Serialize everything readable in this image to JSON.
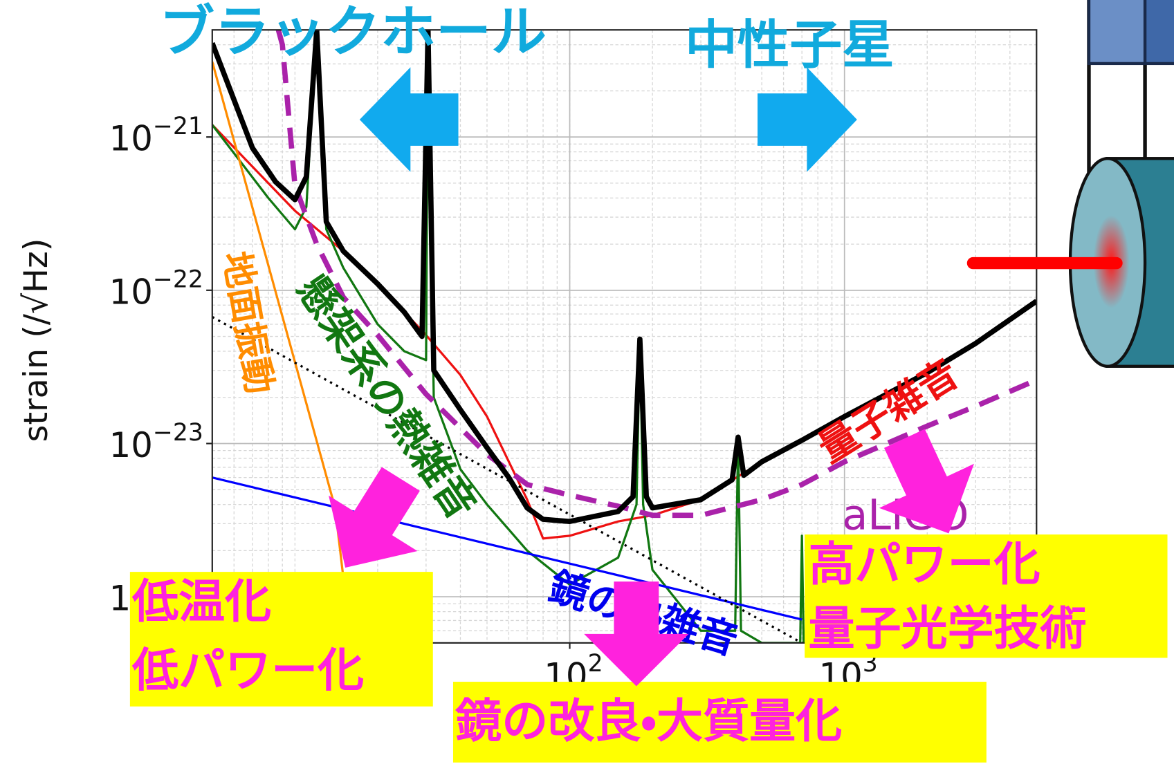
{
  "chart_data": {
    "type": "line",
    "xscale": "log",
    "yscale": "log",
    "xlim": [
      5,
      5000
    ],
    "ylim": [
      5e-25,
      5e-21
    ],
    "xticks": [
      {
        "value": 100,
        "label": "10",
        "exponent": "2"
      },
      {
        "value": 1000,
        "label": "10",
        "exponent": "3"
      }
    ],
    "yticks": [
      {
        "value": 1e-21,
        "label": "10",
        "exponent": "−21"
      },
      {
        "value": 1e-22,
        "label": "10",
        "exponent": "−22"
      },
      {
        "value": 1e-23,
        "label": "10",
        "exponent": "−23"
      },
      {
        "value": 1e-24,
        "label": "10",
        "exponent": "−24"
      }
    ],
    "ylabel": "strain (/√Hz)",
    "grid": true,
    "minor_grid": true,
    "annotations": [
      "ブラックホール",
      "中性子星"
    ],
    "callouts": [
      {
        "lines": [
          "低温化",
          "低パワー化"
        ]
      },
      {
        "lines": [
          "鏡の改良・大質量化"
        ]
      },
      {
        "lines": [
          "高パワー化",
          "量子光学技術"
        ]
      }
    ],
    "series": [
      {
        "name": "量子雑音",
        "color": "#ee1111",
        "width": 3,
        "x": [
          5,
          10,
          15,
          20,
          30,
          40,
          50,
          70,
          80,
          100,
          150,
          200,
          300,
          500,
          700,
          1000,
          2000,
          3000,
          5000
        ],
        "values": [
          1.2e-21,
          3.3e-22,
          1.8e-22,
          1.1e-22,
          5.1e-23,
          2.8e-23,
          1.5e-23,
          4.3e-24,
          2.4e-24,
          2.5e-24,
          3.1e-24,
          3.4e-24,
          4.3e-24,
          7.6e-24,
          1.05e-23,
          1.5e-23,
          2.9e-23,
          4.5e-23,
          8.5e-23
        ]
      },
      {
        "name": "懸架系の熱雑音",
        "color": "#117711",
        "width": 3,
        "x": [
          5,
          8,
          10,
          11,
          12,
          13,
          15,
          20,
          25,
          30,
          30.5,
          32,
          40,
          50,
          70,
          100,
          150,
          175,
          180,
          185,
          200,
          300,
          400,
          410,
          420,
          500,
          690,
          700,
          710
        ],
        "values": [
          1.2e-21,
          4e-22,
          2.5e-22,
          3.5e-22,
          5e-21,
          2.5e-22,
          1.4e-22,
          6e-23,
          4e-23,
          3.5e-23,
          5e-21,
          2e-23,
          6.8e-24,
          4e-24,
          2e-24,
          1.2e-24,
          1.8e-24,
          4e-24,
          4.8e-23,
          4e-24,
          1.5e-24,
          6e-25,
          6e-25,
          1.1e-23,
          6e-25,
          5e-25,
          5e-25,
          2.5e-24,
          5e-25
        ]
      },
      {
        "name": "地面振動",
        "color": "#ff8c00",
        "width": 3,
        "x": [
          5,
          14,
          16
        ],
        "values": [
          3.1e-21,
          3.8e-24,
          5e-25
        ]
      },
      {
        "name": "鏡の熱雑音",
        "color": "#0000ff",
        "width": 3,
        "x": [
          5,
          700
        ],
        "values": [
          6e-24,
          7.1e-25
        ]
      },
      {
        "color": "#000000",
        "width": 3,
        "dash": "dotted",
        "x": [
          5,
          700
        ],
        "values": [
          6.7e-23,
          5e-25
        ]
      },
      {
        "name": "aLIGO",
        "color": "#aa22aa",
        "width": 7,
        "dash": "dashed",
        "x": [
          8.7,
          9,
          10,
          12,
          15,
          20,
          30,
          50,
          70,
          100,
          150,
          200,
          300,
          500,
          700,
          1000,
          2000,
          3000,
          5000
        ],
        "values": [
          5e-21,
          4e-21,
          4.8e-22,
          2e-22,
          9e-23,
          5.1e-23,
          2.1e-23,
          8.5e-24,
          5.4e-24,
          4.6e-24,
          3.9e-24,
          3.4e-24,
          3.4e-24,
          4.3e-24,
          5.4e-24,
          7.6e-24,
          1.3e-23,
          1.75e-23,
          2.6e-23
        ]
      },
      {
        "color": "#000000",
        "width": 7,
        "x": [
          5,
          7,
          8.5,
          10,
          11,
          12,
          13,
          15,
          20,
          25,
          29,
          30.5,
          32,
          40,
          50,
          60,
          70,
          80,
          100,
          150,
          170,
          180,
          190,
          200,
          300,
          390,
          410,
          430,
          500,
          700,
          1000,
          2000,
          3000,
          5000
        ],
        "values": [
          4.1e-21,
          8.5e-22,
          5.1e-22,
          3.9e-22,
          5.5e-22,
          5e-21,
          2.8e-22,
          1.8e-22,
          1.1e-22,
          7.2e-23,
          5e-23,
          5e-21,
          3e-23,
          1.66e-23,
          9.4e-24,
          6e-24,
          3.8e-24,
          3.2e-24,
          3.1e-24,
          3.6e-24,
          4.5e-24,
          4.8e-23,
          4.5e-24,
          3.8e-24,
          4.3e-24,
          5.8e-24,
          1.1e-23,
          6.2e-24,
          7.6e-24,
          1.05e-23,
          1.5e-23,
          2.9e-23,
          4.5e-23,
          8.5e-23
        ]
      }
    ]
  }
}
